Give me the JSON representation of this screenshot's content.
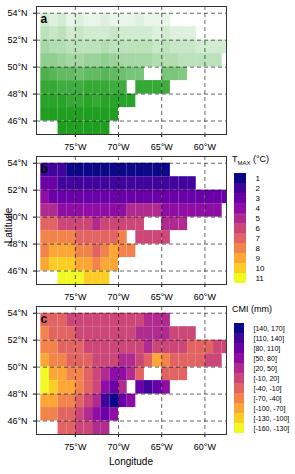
{
  "chart_data": {
    "type": "map",
    "xlabel": "Longitude",
    "ylabel": "Latitude",
    "xlim": [
      -79.5,
      -57.5
    ],
    "xticks": [
      {
        "value": -75,
        "label": "75°W"
      },
      {
        "value": -70,
        "label": "70°W"
      },
      {
        "value": -65,
        "label": "65°W"
      },
      {
        "value": -60,
        "label": "60°W"
      }
    ],
    "ylim": [
      45,
      54.5
    ],
    "yticks": [
      {
        "value": 46,
        "label": "46°N"
      },
      {
        "value": 48,
        "label": "48°N"
      },
      {
        "value": 50,
        "label": "50°N"
      },
      {
        "value": 52,
        "label": "52°N"
      },
      {
        "value": 54,
        "label": "54°N"
      }
    ],
    "grid": true,
    "x": [
      -78.5,
      -77.5,
      -76.5,
      -75.5,
      -74.5,
      -73.5,
      -72.5,
      -71.5,
      -70.5,
      -69.5,
      -68.5,
      -67.5,
      -66.5,
      -65.5,
      -64.5,
      -63.5,
      -62.5,
      -61.5,
      -60.5,
      -59.5,
      -58.5,
      -57.5
    ],
    "y": [
      53.5,
      52.5,
      51.5,
      50.5,
      49.5,
      48.5,
      47.5,
      46.5,
      45.5
    ],
    "panels": [
      {
        "label": "a",
        "type": "occurrence",
        "color": "#1f9e1f",
        "values": [
          [
            0.2,
            0.15,
            0.2,
            0.1,
            0.15,
            0.1,
            0.1,
            0.15,
            0.1,
            0.1,
            0.1,
            0.15,
            0.1,
            0.1,
            0.1,
            null,
            null,
            null,
            null,
            null,
            null,
            null
          ],
          [
            0.3,
            0.25,
            0.3,
            0.2,
            0.25,
            0.2,
            0.2,
            0.2,
            0.25,
            0.2,
            0.2,
            0.2,
            0.2,
            0.15,
            0.2,
            0.15,
            0.15,
            0.15,
            null,
            null,
            null,
            null
          ],
          [
            0.4,
            0.35,
            0.35,
            0.3,
            0.3,
            0.3,
            0.3,
            0.35,
            0.3,
            0.3,
            0.3,
            0.3,
            0.3,
            0.25,
            0.3,
            0.25,
            0.25,
            0.25,
            0.2,
            0.2,
            0.2,
            0.2
          ],
          [
            0.5,
            0.5,
            0.45,
            0.4,
            0.4,
            0.45,
            0.45,
            0.5,
            0.45,
            0.4,
            0.4,
            0.4,
            0.4,
            0.35,
            0.35,
            0.35,
            0.3,
            0.3,
            0.3,
            0.3,
            0.3,
            null
          ],
          [
            0.8,
            0.75,
            0.7,
            0.7,
            0.65,
            0.7,
            0.7,
            0.75,
            0.7,
            0.65,
            0.6,
            0.6,
            null,
            null,
            0.6,
            0.6,
            0.55,
            null,
            null,
            null,
            null,
            null
          ],
          [
            0.9,
            0.9,
            0.85,
            0.85,
            0.85,
            0.9,
            0.9,
            0.9,
            0.85,
            0.85,
            null,
            0.9,
            0.9,
            0.9,
            0.85,
            null,
            null,
            null,
            null,
            null,
            null,
            null
          ],
          [
            0.95,
            0.95,
            0.95,
            0.9,
            0.9,
            0.95,
            0.9,
            0.95,
            0.95,
            0.95,
            0.95,
            null,
            null,
            null,
            null,
            null,
            null,
            null,
            null,
            null,
            null,
            null
          ],
          [
            1,
            1,
            1,
            1,
            1,
            1,
            1,
            1,
            1,
            null,
            null,
            null,
            null,
            null,
            null,
            null,
            null,
            null,
            null,
            null,
            null,
            null
          ],
          [
            null,
            null,
            1,
            1,
            1,
            1,
            1,
            1,
            null,
            null,
            null,
            null,
            null,
            null,
            null,
            null,
            null,
            null,
            null,
            null,
            null,
            null
          ]
        ]
      },
      {
        "label": "b",
        "type": "heatmap",
        "colorbar": {
          "title": "T",
          "title_sub": "MAX",
          "title_suffix": " (°C)",
          "range": [
            1,
            11
          ],
          "ticks": [
            1,
            2,
            3,
            4,
            5,
            6,
            7,
            8,
            9,
            10,
            11
          ]
        },
        "values": [
          [
            2,
            2,
            2,
            1,
            1,
            1,
            1,
            1,
            1,
            1,
            1,
            1,
            1,
            1,
            1,
            null,
            null,
            null,
            null,
            null,
            null,
            null
          ],
          [
            3,
            3,
            2,
            2,
            2,
            2,
            2,
            2,
            2,
            2,
            2,
            2,
            2,
            2,
            2,
            2,
            2,
            2,
            null,
            null,
            null,
            null
          ],
          [
            4,
            3,
            3,
            3,
            3,
            3,
            3,
            3,
            3,
            3,
            3,
            3,
            3,
            3,
            3,
            3,
            3,
            3,
            3,
            3,
            3,
            3
          ],
          [
            5,
            5,
            4,
            4,
            4,
            4,
            4,
            4,
            4,
            4,
            5,
            5,
            5,
            5,
            4,
            4,
            4,
            4,
            4,
            4,
            4,
            null
          ],
          [
            7,
            7,
            6,
            6,
            6,
            6,
            5,
            6,
            6,
            6,
            6,
            6,
            null,
            null,
            5,
            5,
            5,
            null,
            null,
            null,
            null,
            null
          ],
          [
            8,
            8,
            8,
            8,
            7,
            7,
            7,
            7,
            7,
            8,
            null,
            6,
            6,
            6,
            6,
            null,
            null,
            null,
            null,
            null,
            null,
            null
          ],
          [
            8,
            9,
            9,
            9,
            8,
            8,
            7,
            8,
            9,
            8,
            8,
            null,
            null,
            null,
            null,
            null,
            null,
            null,
            null,
            null,
            null,
            null
          ],
          [
            9,
            10,
            10,
            10,
            9,
            9,
            8,
            9,
            9,
            null,
            null,
            null,
            null,
            null,
            null,
            null,
            null,
            null,
            null,
            null,
            null,
            null
          ],
          [
            null,
            null,
            11,
            11,
            11,
            10,
            10,
            10,
            null,
            null,
            null,
            null,
            null,
            null,
            null,
            null,
            null,
            null,
            null,
            null,
            null,
            null
          ]
        ]
      },
      {
        "label": "c",
        "type": "binned",
        "colorbar": {
          "title": "CMI (mm)",
          "bins": [
            [
              140,
              170
            ],
            [
              110,
              140
            ],
            [
              80,
              110
            ],
            [
              50,
              80
            ],
            [
              20,
              50
            ],
            [
              -10,
              20
            ],
            [
              -40,
              -10
            ],
            [
              -70,
              -40
            ],
            [
              -100,
              -70
            ],
            [
              -130,
              -100
            ],
            [
              -160,
              -130
            ]
          ],
          "bin_labels": [
            "[140, 170]",
            "[110, 140]",
            "[80, 110]",
            "[50, 80]",
            "[20, 50]",
            "[-10, 20]",
            "[-40, -10]",
            "[-70, -40]",
            "[-100, -70]",
            "[-130, -100]",
            "[-160, -130]"
          ]
        },
        "values": [
          [
            -40,
            -40,
            -40,
            -10,
            -10,
            -10,
            -10,
            -10,
            -10,
            -10,
            -10,
            -10,
            20,
            20,
            20,
            null,
            null,
            null,
            null,
            null,
            null,
            null
          ],
          [
            -70,
            -40,
            -40,
            -40,
            -10,
            -10,
            -10,
            -10,
            -10,
            -10,
            -10,
            20,
            20,
            20,
            20,
            -10,
            -10,
            -10,
            null,
            null,
            null,
            null
          ],
          [
            -70,
            -70,
            -40,
            -40,
            -40,
            -10,
            -10,
            -10,
            -10,
            -10,
            -10,
            -10,
            20,
            -10,
            -10,
            -10,
            -10,
            -40,
            -40,
            -40,
            -10,
            -10
          ],
          [
            -100,
            -70,
            -70,
            -40,
            -40,
            -40,
            -10,
            -10,
            -10,
            20,
            20,
            -10,
            -40,
            -100,
            -70,
            -40,
            -40,
            -40,
            -40,
            -10,
            -10,
            null
          ],
          [
            -145,
            -100,
            -100,
            -70,
            -70,
            -40,
            -10,
            20,
            50,
            50,
            20,
            -40,
            null,
            null,
            -40,
            -40,
            -40,
            null,
            null,
            null,
            null,
            null
          ],
          [
            -145,
            -130,
            -100,
            -100,
            -70,
            -40,
            -10,
            50,
            80,
            20,
            null,
            80,
            110,
            80,
            50,
            null,
            null,
            null,
            null,
            null,
            null,
            null
          ],
          [
            -100,
            -100,
            -70,
            -70,
            -40,
            -10,
            20,
            110,
            140,
            80,
            50,
            null,
            null,
            null,
            null,
            null,
            null,
            null,
            null,
            null,
            null,
            null
          ],
          [
            -70,
            -70,
            -40,
            -40,
            -10,
            20,
            50,
            80,
            50,
            null,
            null,
            null,
            null,
            null,
            null,
            null,
            null,
            null,
            null,
            null,
            null,
            null
          ],
          [
            null,
            null,
            -40,
            -40,
            -10,
            -10,
            20,
            20,
            null,
            null,
            null,
            null,
            null,
            null,
            null,
            null,
            null,
            null,
            null,
            null,
            null,
            null
          ]
        ]
      }
    ]
  }
}
